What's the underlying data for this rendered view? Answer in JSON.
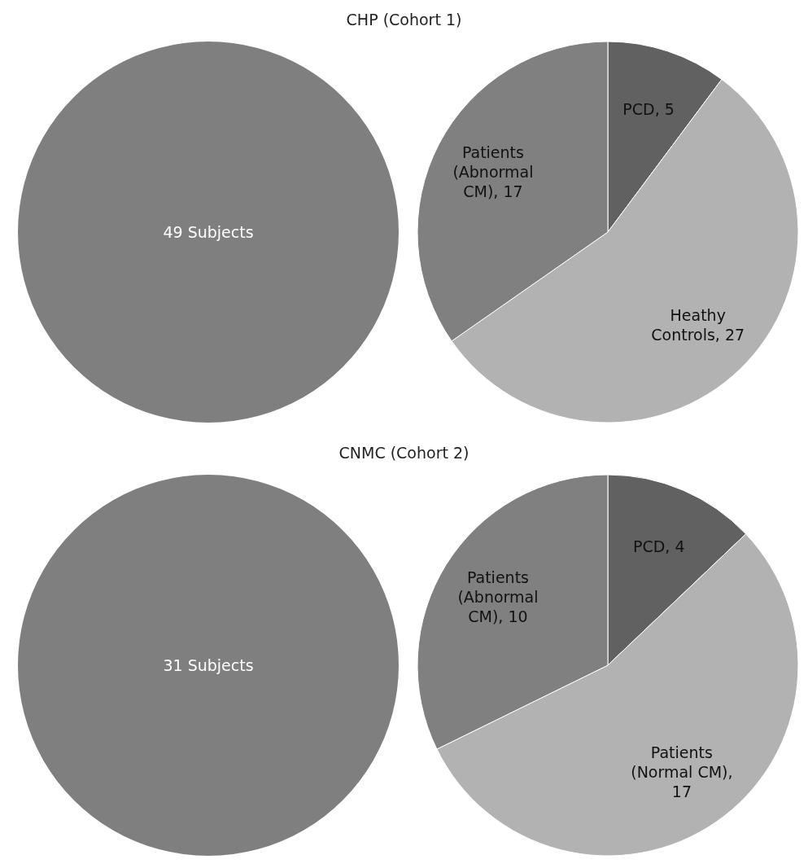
{
  "chart_data": [
    {
      "type": "pie",
      "title": "CHP (Cohort 1)",
      "categories": [
        "49 Subjects"
      ],
      "values": [
        49
      ],
      "colors": [
        "#7f7f7f"
      ]
    },
    {
      "type": "pie",
      "categories": [
        "PCD, 5",
        "Heathy Controls, 27",
        "Patients (Abnormal CM), 17"
      ],
      "values": [
        5,
        27,
        17
      ],
      "colors": [
        "#616161",
        "#b2b2b2",
        "#808080"
      ]
    },
    {
      "type": "pie",
      "title": "CNMC (Cohort 2)",
      "categories": [
        "31 Subjects"
      ],
      "values": [
        31
      ],
      "colors": [
        "#7f7f7f"
      ]
    },
    {
      "type": "pie",
      "categories": [
        "PCD, 4",
        "Patients (Normal CM), 17",
        "Patients (Abnormal CM), 10"
      ],
      "values": [
        4,
        17,
        10
      ],
      "colors": [
        "#616161",
        "#b2b2b2",
        "#808080"
      ]
    }
  ]
}
